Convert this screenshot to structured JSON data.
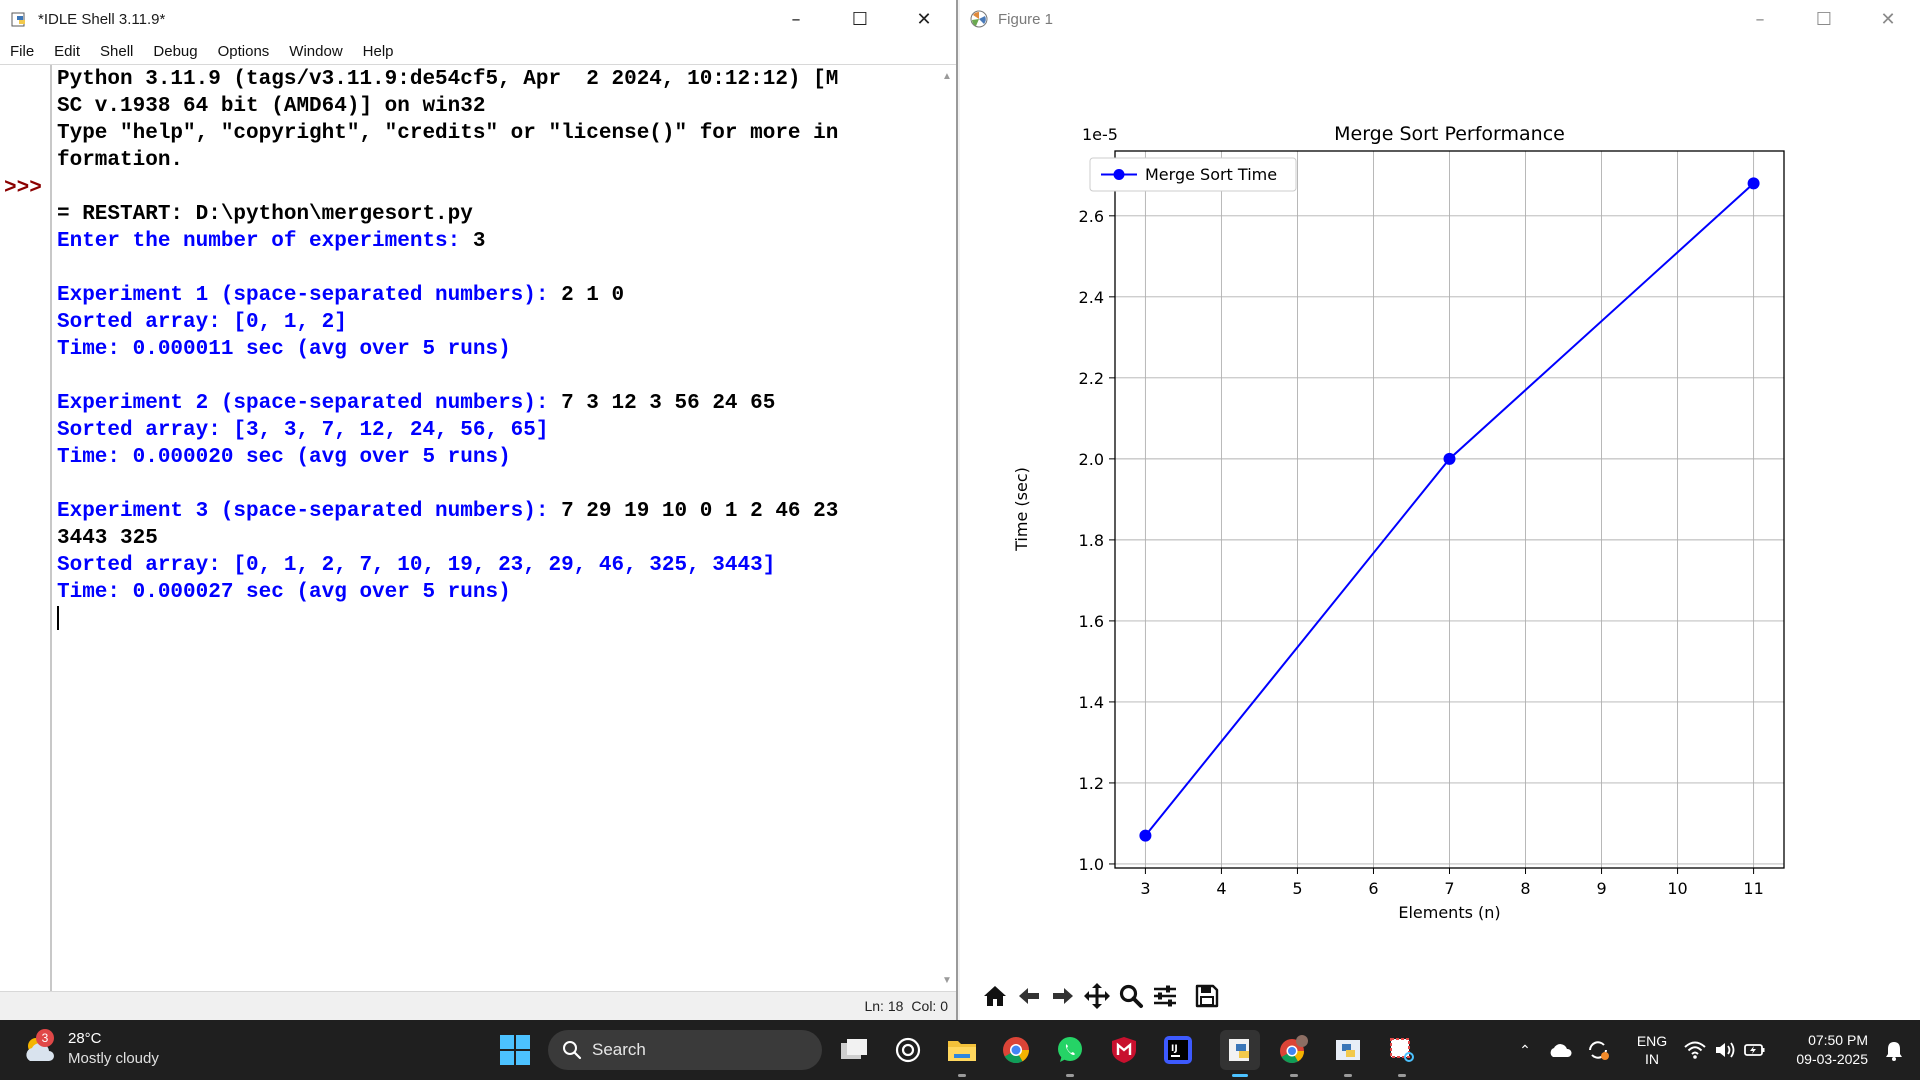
{
  "idle": {
    "title": "*IDLE Shell 3.11.9*",
    "menu": [
      "File",
      "Edit",
      "Shell",
      "Debug",
      "Options",
      "Window",
      "Help"
    ],
    "prompt": ">>>",
    "lines": [
      {
        "parts": [
          {
            "t": "Python 3.11.9 (tags/v3.11.9:de54cf5, Apr  2 2024, 10:12:12) [M",
            "c": "blk"
          }
        ]
      },
      {
        "parts": [
          {
            "t": "SC v.1938 64 bit (AMD64)] on win32",
            "c": "blk"
          }
        ]
      },
      {
        "parts": [
          {
            "t": "Type \"help\", \"copyright\", \"credits\" or \"license()\" for more in",
            "c": "blk"
          }
        ]
      },
      {
        "parts": [
          {
            "t": "formation.",
            "c": "blk"
          }
        ]
      },
      {
        "parts": [
          {
            "t": "",
            "c": "blk"
          }
        ]
      },
      {
        "parts": [
          {
            "t": "= RESTART: D:\\python\\mergesort.py",
            "c": "blk"
          }
        ]
      },
      {
        "parts": [
          {
            "t": "Enter the number of experiments: ",
            "c": "blu"
          },
          {
            "t": "3",
            "c": "blk"
          }
        ]
      },
      {
        "parts": [
          {
            "t": "",
            "c": "blk"
          }
        ]
      },
      {
        "parts": [
          {
            "t": "Experiment 1 (space-separated numbers): ",
            "c": "blu"
          },
          {
            "t": "2 1 0",
            "c": "blk"
          }
        ]
      },
      {
        "parts": [
          {
            "t": "Sorted array: [0, 1, 2]",
            "c": "blu"
          }
        ]
      },
      {
        "parts": [
          {
            "t": "Time: 0.000011 sec (avg over 5 runs)",
            "c": "blu"
          }
        ]
      },
      {
        "parts": [
          {
            "t": "",
            "c": "blk"
          }
        ]
      },
      {
        "parts": [
          {
            "t": "Experiment 2 (space-separated numbers): ",
            "c": "blu"
          },
          {
            "t": "7 3 12 3 56 24 65",
            "c": "blk"
          }
        ]
      },
      {
        "parts": [
          {
            "t": "Sorted array: [3, 3, 7, 12, 24, 56, 65]",
            "c": "blu"
          }
        ]
      },
      {
        "parts": [
          {
            "t": "Time: 0.000020 sec (avg over 5 runs)",
            "c": "blu"
          }
        ]
      },
      {
        "parts": [
          {
            "t": "",
            "c": "blk"
          }
        ]
      },
      {
        "parts": [
          {
            "t": "Experiment 3 (space-separated numbers): ",
            "c": "blu"
          },
          {
            "t": "7 29 19 10 0 1 2 46 23",
            "c": "blk"
          }
        ]
      },
      {
        "parts": [
          {
            "t": "3443 325",
            "c": "blk"
          }
        ]
      },
      {
        "parts": [
          {
            "t": "Sorted array: [0, 1, 2, 7, 10, 19, 23, 29, 46, 325, 3443]",
            "c": "blu"
          }
        ]
      },
      {
        "parts": [
          {
            "t": "Time: 0.000027 sec (avg over 5 runs)",
            "c": "blu"
          }
        ]
      }
    ],
    "status_ln": "Ln: 18",
    "status_col": "Col: 0"
  },
  "figure": {
    "title": "Figure 1",
    "toolbar": [
      "home-icon",
      "back-arrow-icon",
      "forward-arrow-icon",
      "pan-icon",
      "zoom-icon",
      "configure-subplots-icon",
      "save-icon"
    ]
  },
  "chart_data": {
    "type": "line",
    "title": "Merge Sort Performance",
    "xlabel": "Elements (n)",
    "ylabel": "Time (sec)",
    "offset_label": "1e-5",
    "x": [
      3,
      7,
      11
    ],
    "series": [
      {
        "name": "Merge Sort Time",
        "values": [
          1.07,
          2.0,
          2.68
        ],
        "color": "#0000ff"
      }
    ],
    "xlim": [
      2.6,
      11.4
    ],
    "ylim": [
      0.99,
      2.76
    ],
    "xticks": [
      3,
      4,
      5,
      6,
      7,
      8,
      9,
      10,
      11
    ],
    "yticks": [
      1.0,
      1.2,
      1.4,
      1.6,
      1.8,
      2.0,
      2.2,
      2.4,
      2.6
    ],
    "ytick_labels": [
      "1.0",
      "1.2",
      "1.4",
      "1.6",
      "1.8",
      "2.0",
      "2.2",
      "2.4",
      "2.6"
    ],
    "grid": true,
    "legend": "upper-left"
  },
  "taskbar": {
    "weather_badge": "3",
    "weather_temp": "28°C",
    "weather_desc": "Mostly cloudy",
    "search_placeholder": "Search",
    "lang_top": "ENG",
    "lang_bottom": "IN",
    "time": "07:50 PM",
    "date": "09-03-2025"
  }
}
